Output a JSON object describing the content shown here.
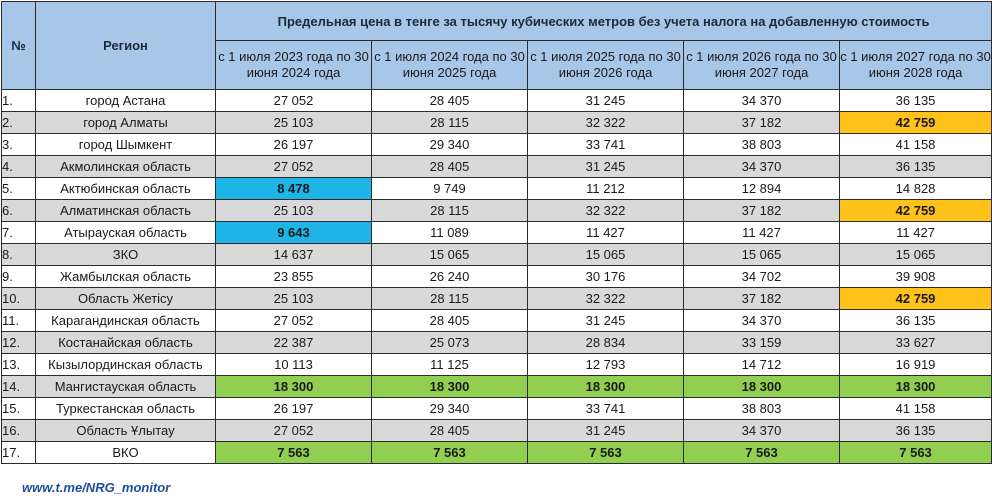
{
  "header": {
    "col_num": "№",
    "col_region": "Регион",
    "group_title": "Предельная цена в тенге за тысячу кубических метров без учета налога на добавленную стоимость",
    "periods": [
      "с 1 июля 2023 года по 30 июня 2024 года",
      "с 1 июля 2024 года по 30 июня 2025 года",
      "с 1 июля 2025 года по 30 июня 2026 года",
      "с 1 июля 2026 года по 30 июня 2027 года",
      "с 1 июля 2027 года по 30 июня 2028 года"
    ]
  },
  "highlight_colors": {
    "blue": "#1eb4e6",
    "orange": "#ffc21a",
    "green": "#92cf50",
    "header": "#a8c7e8",
    "stripe": "#d9d9d9"
  },
  "rows": [
    {
      "num": "1.",
      "region": "город Астана",
      "values": [
        "27 052",
        "28 405",
        "31 245",
        "34 370",
        "36 135"
      ],
      "hl": [
        "",
        "",
        "",
        "",
        ""
      ]
    },
    {
      "num": "2.",
      "region": "город Алматы",
      "values": [
        "25 103",
        "28 115",
        "32 322",
        "37 182",
        "42 759"
      ],
      "hl": [
        "",
        "",
        "",
        "",
        "orange"
      ]
    },
    {
      "num": "3.",
      "region": "город Шымкент",
      "values": [
        "26 197",
        "29 340",
        "33 741",
        "38 803",
        "41 158"
      ],
      "hl": [
        "",
        "",
        "",
        "",
        ""
      ]
    },
    {
      "num": "4.",
      "region": "Акмолинская область",
      "values": [
        "27 052",
        "28 405",
        "31 245",
        "34 370",
        "36 135"
      ],
      "hl": [
        "",
        "",
        "",
        "",
        ""
      ]
    },
    {
      "num": "5.",
      "region": "Актюбинская область",
      "values": [
        "8 478",
        "9 749",
        "11 212",
        "12 894",
        "14 828"
      ],
      "hl": [
        "blue",
        "",
        "",
        "",
        ""
      ]
    },
    {
      "num": "6.",
      "region": "Алматинская область",
      "values": [
        "25 103",
        "28 115",
        "32 322",
        "37 182",
        "42 759"
      ],
      "hl": [
        "",
        "",
        "",
        "",
        "orange"
      ]
    },
    {
      "num": "7.",
      "region": "Атырауская область",
      "values": [
        "9 643",
        "11 089",
        "11 427",
        "11 427",
        "11 427"
      ],
      "hl": [
        "blue",
        "",
        "",
        "",
        ""
      ]
    },
    {
      "num": "8.",
      "region": "ЗКО",
      "values": [
        "14 637",
        "15 065",
        "15 065",
        "15 065",
        "15 065"
      ],
      "hl": [
        "",
        "",
        "",
        "",
        ""
      ]
    },
    {
      "num": "9.",
      "region": "Жамбылская область",
      "values": [
        "23 855",
        "26 240",
        "30 176",
        "34 702",
        "39 908"
      ],
      "hl": [
        "",
        "",
        "",
        "",
        ""
      ]
    },
    {
      "num": "10.",
      "region": "Область Жетiсу",
      "values": [
        "25 103",
        "28 115",
        "32 322",
        "37 182",
        "42 759"
      ],
      "hl": [
        "",
        "",
        "",
        "",
        "orange"
      ]
    },
    {
      "num": "11.",
      "region": "Карагандинская область",
      "values": [
        "27 052",
        "28 405",
        "31 245",
        "34 370",
        "36 135"
      ],
      "hl": [
        "",
        "",
        "",
        "",
        ""
      ]
    },
    {
      "num": "12.",
      "region": "Костанайская область",
      "values": [
        "22 387",
        "25 073",
        "28 834",
        "33 159",
        "33 627"
      ],
      "hl": [
        "",
        "",
        "",
        "",
        ""
      ]
    },
    {
      "num": "13.",
      "region": "Кызылординская область",
      "values": [
        "10 113",
        "11 125",
        "12 793",
        "14 712",
        "16 919"
      ],
      "hl": [
        "",
        "",
        "",
        "",
        ""
      ]
    },
    {
      "num": "14.",
      "region": "Мангистауская область",
      "values": [
        "18 300",
        "18 300",
        "18 300",
        "18 300",
        "18 300"
      ],
      "hl": [
        "green",
        "green",
        "green",
        "green",
        "green"
      ]
    },
    {
      "num": "15.",
      "region": "Туркестанская область",
      "values": [
        "26 197",
        "29 340",
        "33 741",
        "38 803",
        "41 158"
      ],
      "hl": [
        "",
        "",
        "",
        "",
        ""
      ]
    },
    {
      "num": "16.",
      "region": "Область Ұлытау",
      "values": [
        "27 052",
        "28 405",
        "31 245",
        "34 370",
        "36 135"
      ],
      "hl": [
        "",
        "",
        "",
        "",
        ""
      ]
    },
    {
      "num": "17.",
      "region": "ВКО",
      "values": [
        "7 563",
        "7 563",
        "7 563",
        "7 563",
        "7 563"
      ],
      "hl": [
        "green",
        "green",
        "green",
        "green",
        "green"
      ]
    }
  ],
  "footer": {
    "link": "www.t.me/NRG_monitor"
  }
}
